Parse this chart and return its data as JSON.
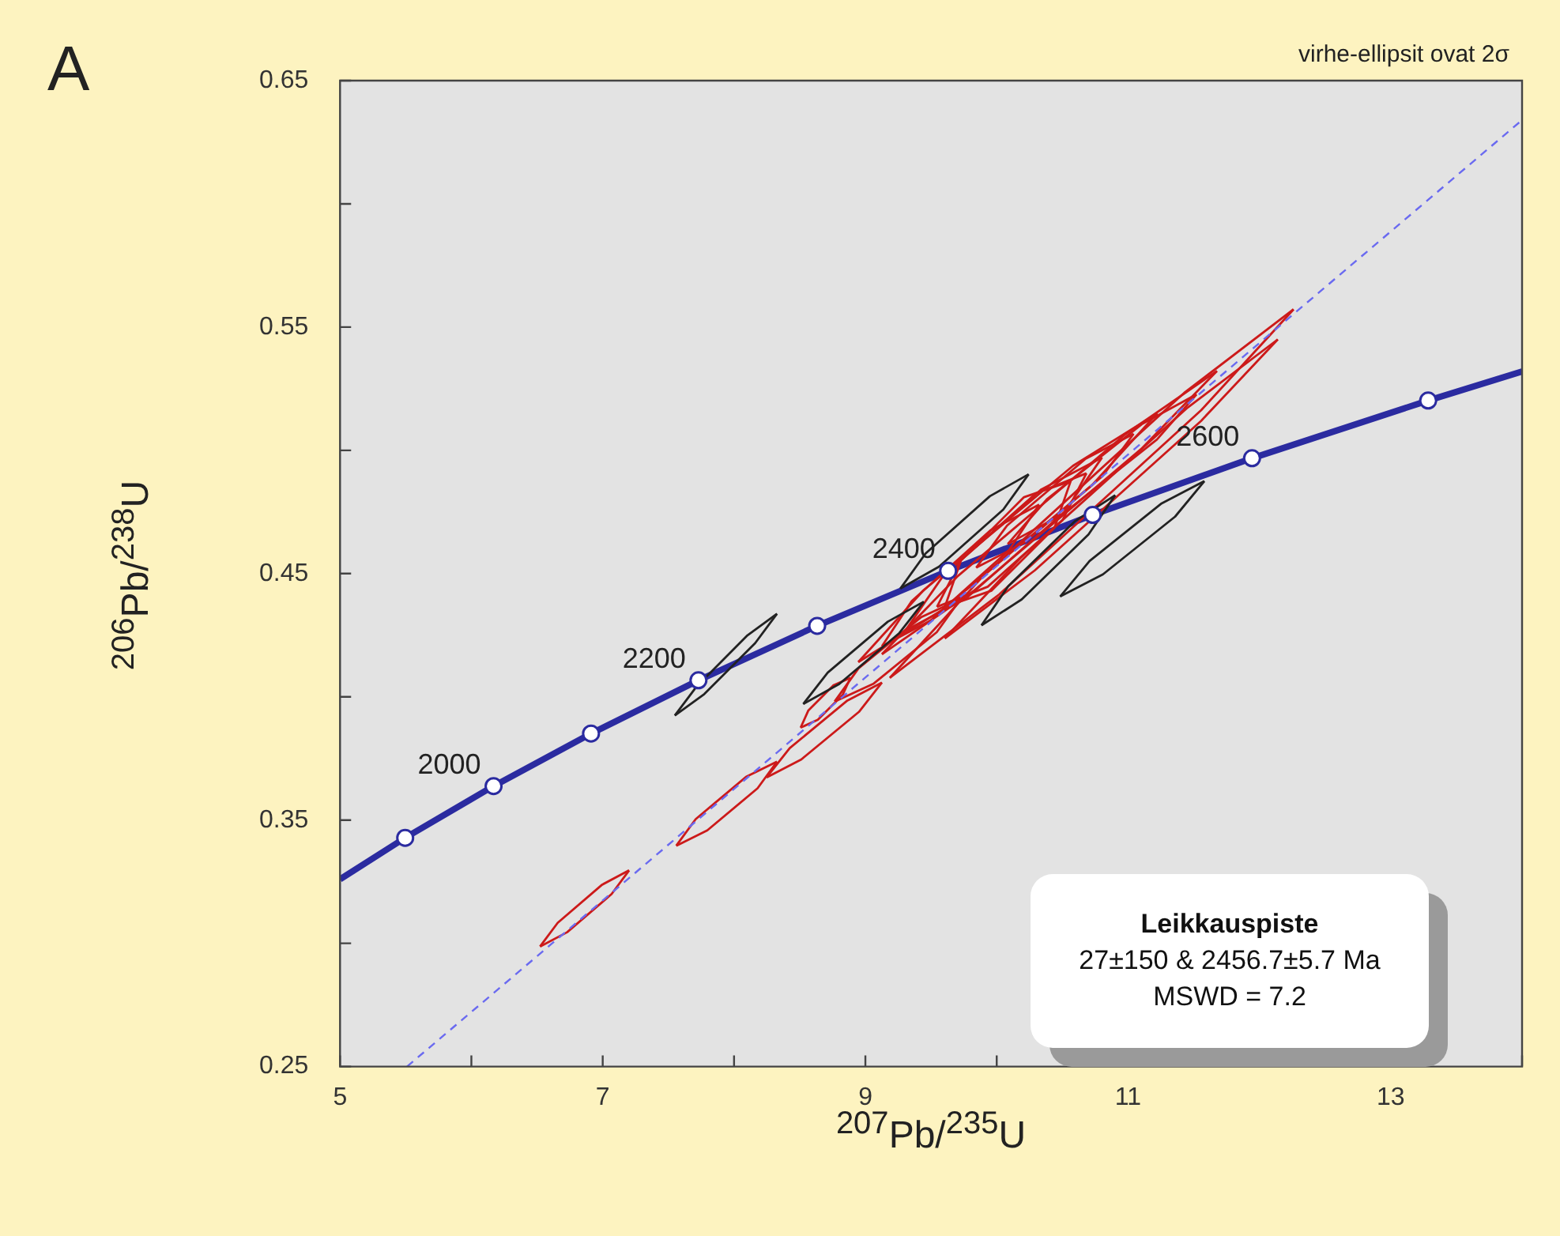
{
  "chart_data": {
    "type": "line",
    "xlabel": "$^{207}$Pb/$^{235}$U",
    "ylabel": "$^{206}$Pb/$^{238}$U",
    "xlim": [
      5,
      14
    ],
    "ylim": [
      0.25,
      0.65
    ],
    "xticks": [
      5,
      {
        "value": 6,
        "label": null
      },
      7,
      {
        "value": 8,
        "label": null
      },
      9,
      {
        "value": 10,
        "label": null
      },
      11,
      {
        "value": 12,
        "label": null
      },
      13,
      {
        "value": 14,
        "label": null
      }
    ],
    "yticks": [
      0.25,
      {
        "value": 0.3,
        "label": null
      },
      0.35,
      {
        "value": 0.4,
        "label": null
      },
      0.45,
      {
        "value": 0.5,
        "label": null
      },
      0.55,
      {
        "value": 0.6,
        "label": null
      },
      0.65
    ],
    "annotations": [
      "A",
      "virhe-ellipsit ovat 2σ",
      "Leikkauspiste",
      "27±150 & 2456.7±5.7  Ma",
      "MSWD = 7.2",
      {
        "text": "2000",
        "x": 6.169,
        "y": 0.3638
      },
      {
        "text": "2200",
        "x": 7.729,
        "y": 0.4067
      },
      {
        "text": "2400",
        "x": 9.63,
        "y": 0.4511
      },
      {
        "text": "2600",
        "x": 11.944,
        "y": 0.4968
      }
    ],
    "series": [
      {
        "color": "#6a6af0",
        "line_style": "dashed",
        "marker": "none",
        "x": [
          5.51,
          14
        ],
        "values": [
          0.25,
          0.634
        ]
      },
      {
        "color": "#222222",
        "marker": "none",
        "x": [
          7.549,
          7.773,
          8.161,
          8.327
        ],
        "values": [
          0.3924,
          0.4011,
          0.4218,
          0.4337
        ]
      },
      {
        "color": "#222222",
        "marker": "none",
        "x": [
          7.549,
          7.715,
          8.103,
          8.327
        ],
        "values": [
          0.3924,
          0.4042,
          0.425,
          0.4337
        ]
      },
      {
        "color": "#222222",
        "marker": "none",
        "x": [
          9.266,
          9.561,
          10.05,
          10.243
        ],
        "values": [
          0.4439,
          0.4528,
          0.476,
          0.4903
        ]
      },
      {
        "color": "#222222",
        "marker": "none",
        "x": [
          9.266,
          9.459,
          9.948,
          10.243
        ],
        "values": [
          0.4439,
          0.4582,
          0.4814,
          0.4903
        ]
      },
      {
        "color": "#222222",
        "marker": "none",
        "x": [
          8.527,
          8.801,
          9.259,
          9.445
        ],
        "values": [
          0.3971,
          0.4052,
          0.4259,
          0.4386
        ]
      },
      {
        "color": "#222222",
        "marker": "none",
        "x": [
          8.527,
          8.713,
          9.171,
          9.445
        ],
        "values": [
          0.3971,
          0.4098,
          0.4305,
          0.4386
        ]
      },
      {
        "color": "#222222",
        "marker": "none",
        "x": [
          9.884,
          10.19,
          10.699,
          10.902
        ],
        "values": [
          0.429,
          0.4395,
          0.4659,
          0.4818
        ]
      },
      {
        "color": "#222222",
        "marker": "none",
        "x": [
          9.884,
          10.088,
          10.597,
          10.902
        ],
        "values": [
          0.429,
          0.4449,
          0.4713,
          0.4818
        ]
      },
      {
        "color": "#222222",
        "marker": "none",
        "x": [
          10.483,
          10.809,
          11.358,
          11.581
        ],
        "values": [
          0.4407,
          0.4497,
          0.4731,
          0.4875
        ]
      },
      {
        "color": "#222222",
        "marker": "none",
        "x": [
          10.483,
          10.707,
          11.256,
          11.581
        ],
        "values": [
          0.4407,
          0.4551,
          0.4785,
          0.4875
        ]
      },
      {
        "color": "#cc1a1a",
        "marker": "none",
        "x": [
          6.523,
          6.729,
          7.068,
          7.201
        ],
        "values": [
          0.2987,
          0.3045,
          0.32,
          0.3296
        ]
      },
      {
        "color": "#cc1a1a",
        "marker": "none",
        "x": [
          6.523,
          6.657,
          6.996,
          7.201
        ],
        "values": [
          0.2987,
          0.3083,
          0.3238,
          0.3296
        ]
      },
      {
        "color": "#cc1a1a",
        "marker": "none",
        "x": [
          7.56,
          7.796,
          8.179,
          8.327
        ],
        "values": [
          0.3396,
          0.3458,
          0.3629,
          0.3737
        ]
      },
      {
        "color": "#cc1a1a",
        "marker": "none",
        "x": [
          7.56,
          7.708,
          8.091,
          8.327
        ],
        "values": [
          0.3396,
          0.3504,
          0.3675,
          0.3737
        ]
      },
      {
        "color": "#cc1a1a",
        "marker": "none",
        "x": [
          8.248,
          8.512,
          8.951,
          9.126
        ],
        "values": [
          0.3673,
          0.3746,
          0.3939,
          0.4058
        ]
      },
      {
        "color": "#cc1a1a",
        "marker": "none",
        "x": [
          8.248,
          8.424,
          8.863,
          9.126
        ],
        "values": [
          0.3673,
          0.3792,
          0.3985,
          0.4058
        ]
      },
      {
        "color": "#cc1a1a",
        "marker": "none",
        "x": [
          8.507,
          8.638,
          8.827,
          8.886
        ],
        "values": [
          0.3875,
          0.3907,
          0.4008,
          0.4077
        ]
      },
      {
        "color": "#cc1a1a",
        "marker": "none",
        "x": [
          8.507,
          8.566,
          8.755,
          8.886
        ],
        "values": [
          0.3875,
          0.3945,
          0.4046,
          0.4077
        ]
      },
      {
        "color": "#cc1a1a",
        "marker": "none",
        "x": [
          9.186,
          10.02,
          11.557,
          12.26
        ],
        "values": [
          0.4077,
          0.4416,
          0.5163,
          0.5572
        ]
      },
      {
        "color": "#cc1a1a",
        "marker": "none",
        "x": [
          9.186,
          9.89,
          11.427,
          12.26
        ],
        "values": [
          0.4077,
          0.4486,
          0.5233,
          0.5572
        ]
      },
      {
        "color": "#cc1a1a",
        "marker": "none",
        "x": [
          9.605,
          10.29,
          11.557,
          12.14
        ],
        "values": [
          0.4237,
          0.4513,
          0.512,
          0.545
        ]
      },
      {
        "color": "#cc1a1a",
        "marker": "none",
        "x": [
          9.605,
          10.188,
          11.455,
          12.14
        ],
        "values": [
          0.4237,
          0.4567,
          0.5174,
          0.545
        ]
      },
      {
        "color": "#cc1a1a",
        "marker": "none",
        "x": [
          9.126,
          9.822,
          11.097,
          11.677
        ],
        "values": [
          0.4173,
          0.4429,
          0.5004,
          0.5322
        ]
      },
      {
        "color": "#cc1a1a",
        "marker": "none",
        "x": [
          9.126,
          9.706,
          10.981,
          11.677
        ],
        "values": [
          0.4173,
          0.4491,
          0.5066,
          0.5322
        ]
      },
      {
        "color": "#cc1a1a",
        "marker": "none",
        "x": [
          8.946,
          9.588,
          10.726,
          11.222
        ],
        "values": [
          0.4141,
          0.4354,
          0.4859,
          0.515
        ]
      },
      {
        "color": "#cc1a1a",
        "marker": "none",
        "x": [
          8.946,
          9.442,
          10.58,
          11.222
        ],
        "values": [
          0.4141,
          0.4432,
          0.4937,
          0.515
        ]
      },
      {
        "color": "#cc1a1a",
        "marker": "none",
        "x": [
          9.305,
          9.766,
          10.515,
          10.802
        ],
        "values": [
          0.4269,
          0.4399,
          0.475,
          0.4971
        ]
      },
      {
        "color": "#cc1a1a",
        "marker": "none",
        "x": [
          9.305,
          9.592,
          10.341,
          10.802
        ],
        "values": [
          0.4269,
          0.4491,
          0.4842,
          0.4971
        ]
      },
      {
        "color": "#cc1a1a",
        "marker": "none",
        "x": [
          9.545,
          9.932,
          10.501,
          10.683
        ],
        "values": [
          0.4365,
          0.4447,
          0.4717,
          0.4907
        ]
      },
      {
        "color": "#cc1a1a",
        "marker": "none",
        "x": [
          9.545,
          9.728,
          10.297,
          10.683
        ],
        "values": [
          0.4365,
          0.4555,
          0.4825,
          0.4907
        ]
      },
      {
        "color": "#cc1a1a",
        "marker": "none",
        "x": [
          9.126,
          9.498,
          10.097,
          10.323
        ],
        "values": [
          0.4205,
          0.431,
          0.4597,
          0.478
        ]
      },
      {
        "color": "#cc1a1a",
        "marker": "none",
        "x": [
          9.126,
          9.352,
          9.951,
          10.323
        ],
        "values": [
          0.4205,
          0.4388,
          0.4675,
          0.478
        ]
      },
      {
        "color": "#cc1a1a",
        "marker": "none",
        "x": [
          9.844,
          10.209,
          10.807,
          11.042
        ],
        "values": [
          0.4524,
          0.4625,
          0.4896,
          0.5067
        ]
      },
      {
        "color": "#cc1a1a",
        "marker": "none",
        "x": [
          9.844,
          10.079,
          10.677,
          11.042
        ],
        "values": [
          0.4524,
          0.4695,
          0.4966,
          0.5067
        ]
      },
      {
        "color": "#cc1a1a",
        "marker": "none",
        "x": [
          8.766,
          9.064,
          9.543,
          9.725
        ],
        "values": [
          0.3981,
          0.4054,
          0.4262,
          0.4397
        ]
      },
      {
        "color": "#cc1a1a",
        "marker": "none",
        "x": [
          8.766,
          8.948,
          9.427,
          9.725
        ],
        "values": [
          0.3981,
          0.4116,
          0.4324,
          0.4397
        ]
      },
      {
        "color": "#cc1a1a",
        "marker": "none",
        "x": [
          10.084,
          10.501,
          11.22,
          11.521
        ],
        "values": [
          0.462,
          0.4741,
          0.5044,
          0.5227
        ]
      },
      {
        "color": "#cc1a1a",
        "marker": "none",
        "x": [
          10.084,
          10.385,
          11.104,
          11.521
        ],
        "values": [
          0.462,
          0.4803,
          0.5106,
          0.5227
        ]
      },
      {
        "color": "#cc1a1a",
        "marker": "none",
        "x": [
          9.605,
          9.961,
          10.44,
          10.563
        ],
        "values": [
          0.4365,
          0.4431,
          0.4686,
          0.4875
        ]
      },
      {
        "color": "#cc1a1a",
        "marker": "none",
        "x": [
          9.605,
          9.729,
          10.208,
          10.563
        ],
        "values": [
          0.4365,
          0.4555,
          0.481,
          0.4875
        ]
      },
      {
        "color": "#2b2ba0",
        "marker": "none",
        "x": [
          5,
          5.496,
          6.169,
          6.911,
          7.729,
          8.633,
          9.63,
          10.731,
          11.944,
          13.285,
          14
        ],
        "values": [
          0.326,
          0.3428,
          0.3638,
          0.3851,
          0.4067,
          0.4288,
          0.4511,
          0.4738,
          0.4968,
          0.5202,
          0.532
        ]
      },
      {
        "type": "scatter",
        "color": "#ffffff",
        "marker": "circle",
        "x": [
          5.496,
          6.169,
          6.911,
          7.729,
          8.633,
          9.63,
          10.731,
          11.944,
          13.285
        ],
        "values": [
          0.3428,
          0.3638,
          0.3851,
          0.4067,
          0.4288,
          0.4511,
          0.4738,
          0.4968,
          0.5202
        ]
      }
    ]
  }
}
